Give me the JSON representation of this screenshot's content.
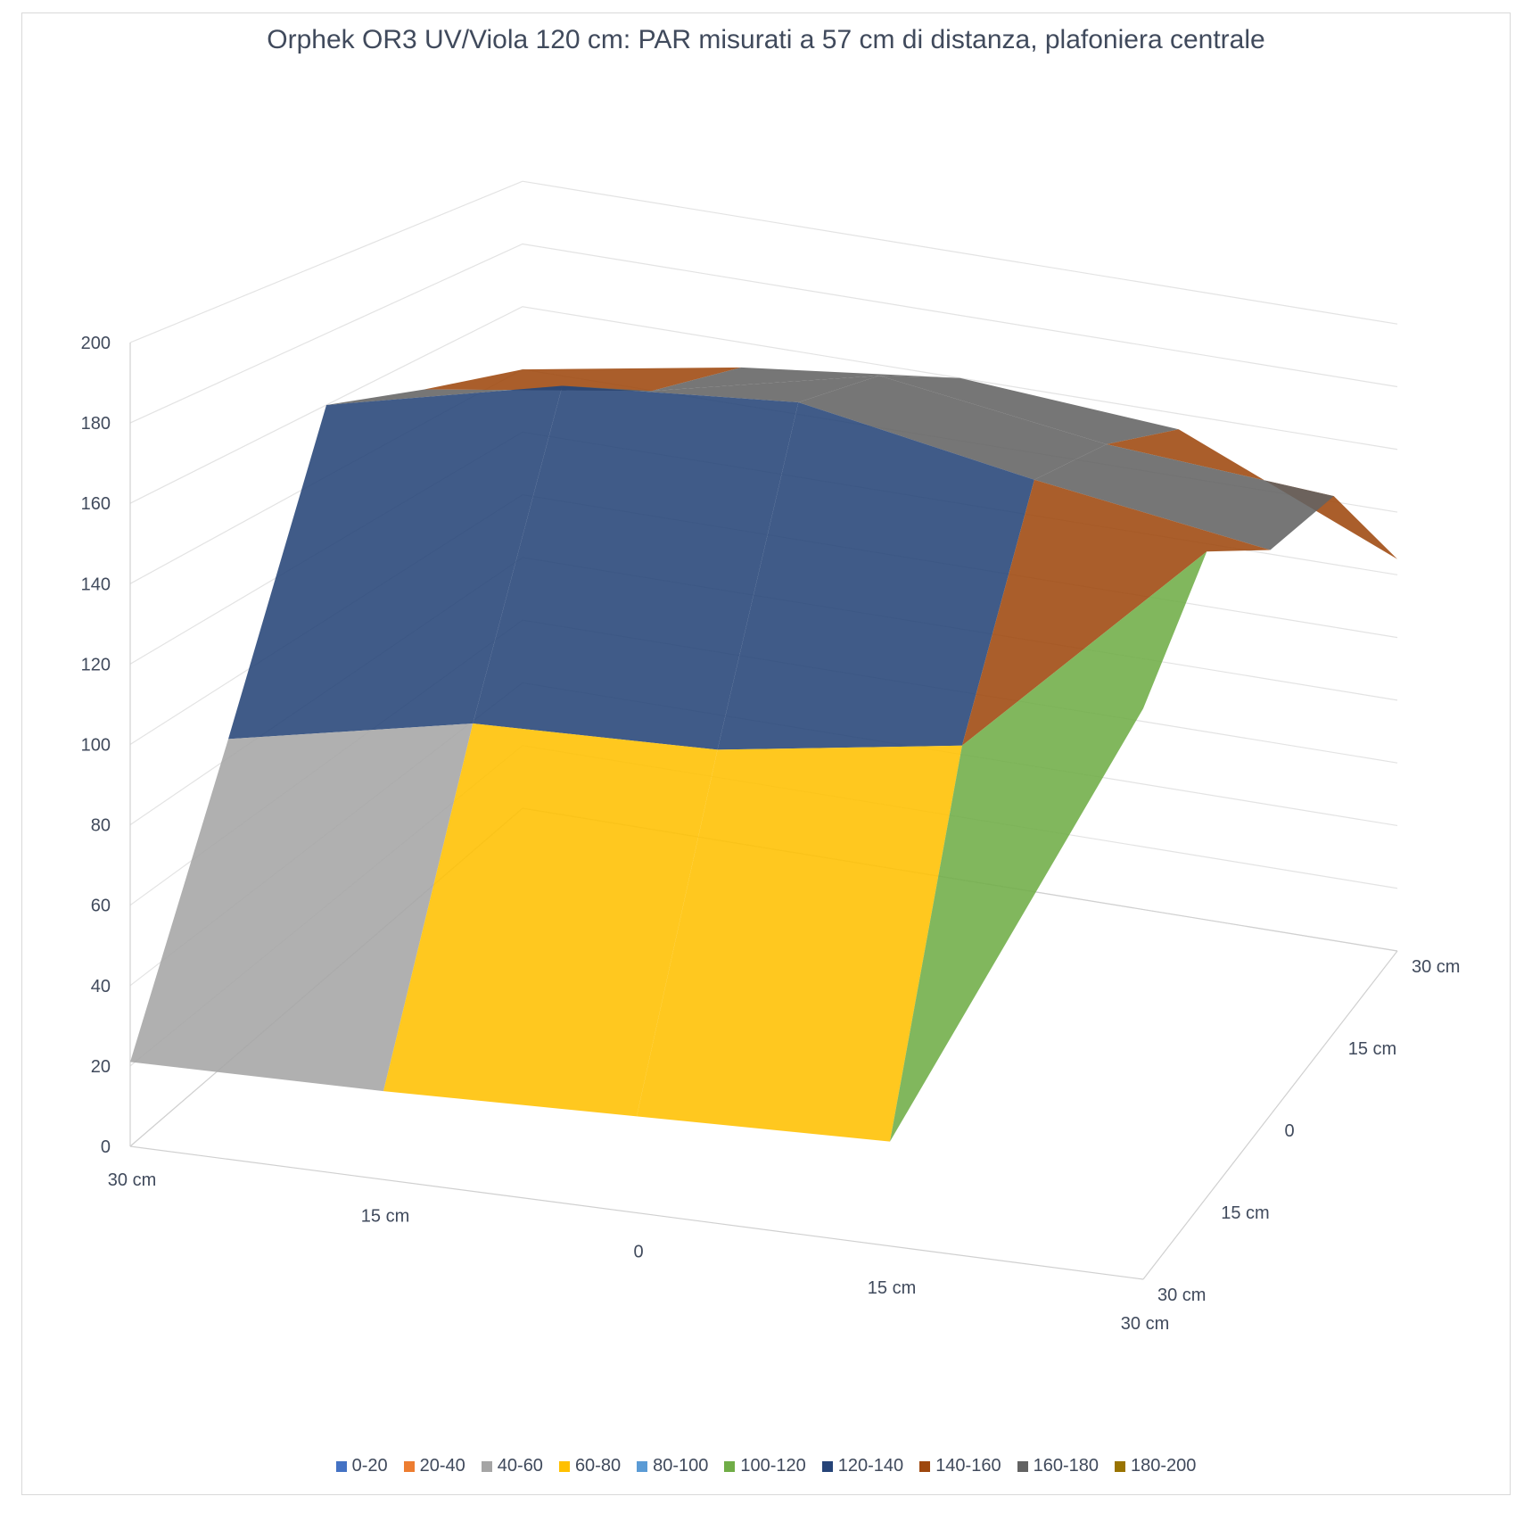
{
  "chart_data": {
    "type": "surface",
    "title": "Orphek OR3 UV/Viola 120 cm: PAR misurati a 57 cm di distanza, plafoniera centrale",
    "z_axis": {
      "ticks": [
        "0",
        "20",
        "40",
        "60",
        "80",
        "100",
        "120",
        "140",
        "160",
        "180",
        "200"
      ],
      "range": [
        0,
        200
      ]
    },
    "x_axis": {
      "ticks": [
        "30 cm",
        "15 cm",
        "0",
        "15 cm",
        "30 cm"
      ]
    },
    "y_axis": {
      "ticks": [
        "30 cm",
        "15 cm",
        "0",
        "15 cm",
        "30 cm"
      ]
    },
    "grid": true,
    "legend_position": "bottom",
    "legend": [
      {
        "label": "0-20",
        "color": "#4472c4"
      },
      {
        "label": "20-40",
        "color": "#ed7d31"
      },
      {
        "label": "40-60",
        "color": "#a5a5a5"
      },
      {
        "label": "60-80",
        "color": "#ffc000"
      },
      {
        "label": "80-100",
        "color": "#5b9bd5"
      },
      {
        "label": "100-120",
        "color": "#70ad47"
      },
      {
        "label": "120-140",
        "color": "#264478"
      },
      {
        "label": "140-160",
        "color": "#9e480e"
      },
      {
        "label": "160-180",
        "color": "#636363"
      },
      {
        "label": "180-200",
        "color": "#997300"
      }
    ],
    "values": [
      [
        21,
        22,
        24,
        26,
        142
      ],
      [
        85,
        98,
        100,
        110,
        170
      ],
      [
        160,
        175,
        180,
        168,
        158
      ],
      [
        150,
        160,
        175,
        165,
        160
      ],
      [
        140,
        152,
        160,
        155,
        125
      ]
    ]
  }
}
